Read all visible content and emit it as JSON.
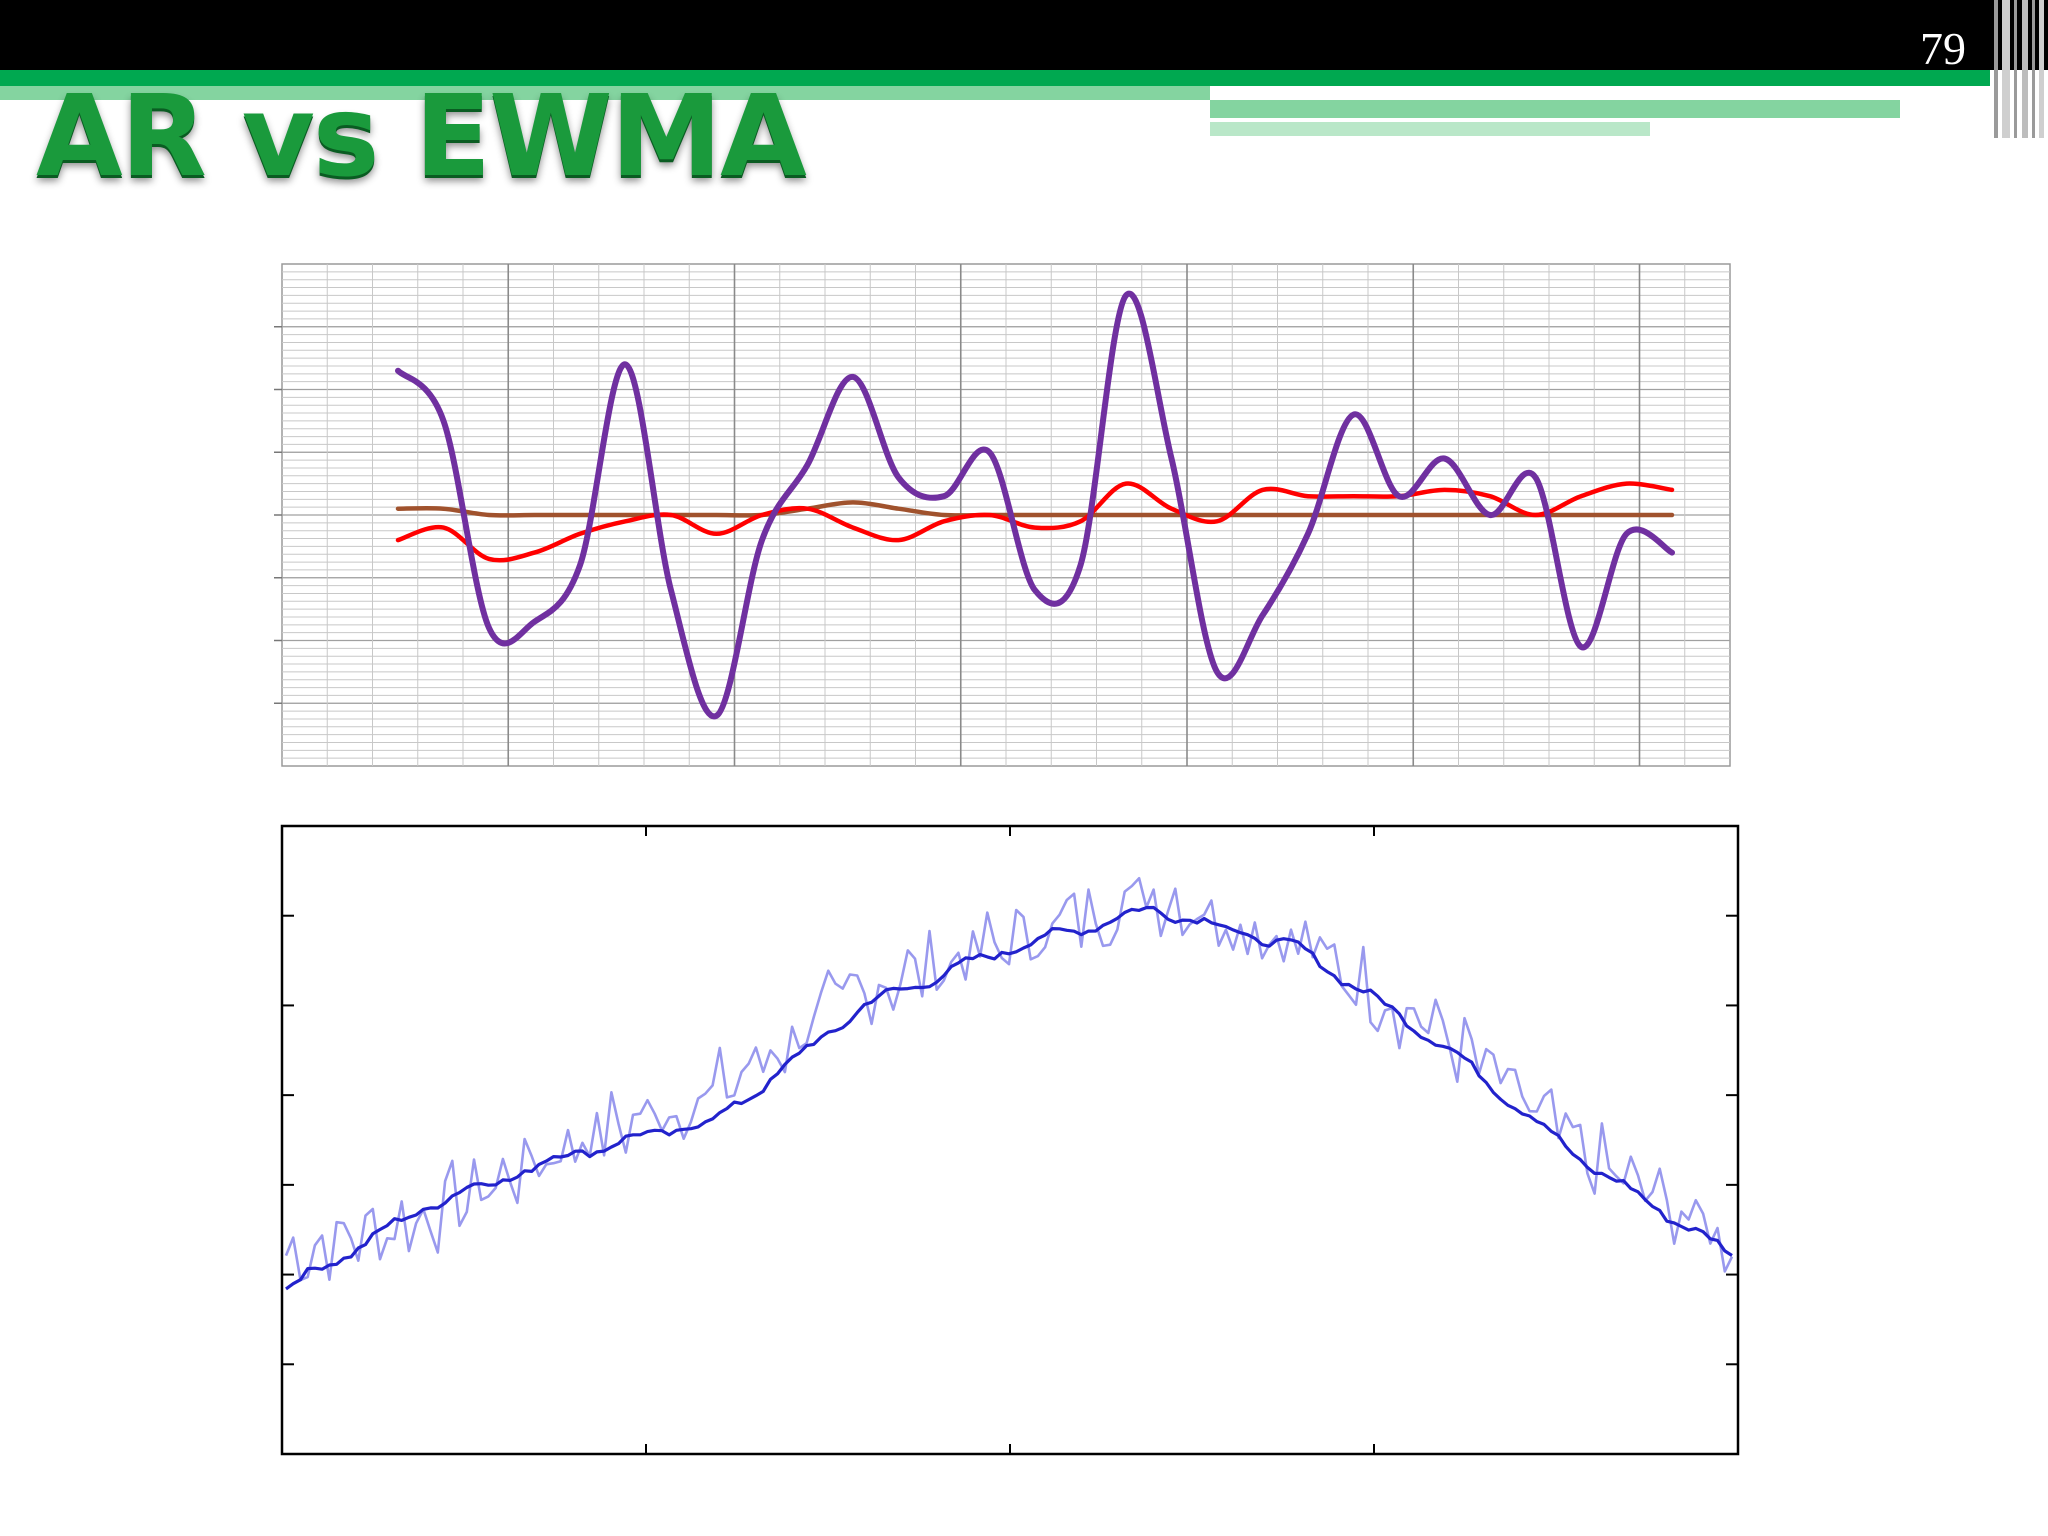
{
  "slide": {
    "number": "79",
    "title": "AR vs EWMA"
  },
  "colors": {
    "top_bar": "#000000",
    "accent_green": "#00a850",
    "light_green": "#84d4a0",
    "title_green": "#1a9a3c"
  },
  "chart_data": [
    {
      "type": "line",
      "title": "",
      "xlabel": "",
      "ylabel": "",
      "grid": true,
      "x": [
        0,
        2,
        4,
        6,
        8,
        10,
        12,
        14,
        16,
        18,
        20,
        22,
        24,
        26,
        28,
        30,
        32,
        34,
        36,
        38,
        40,
        42,
        44,
        46,
        48,
        50,
        52,
        54,
        56
      ],
      "ylim": [
        -4,
        4
      ],
      "series": [
        {
          "color": "#7030a0",
          "values": [
            2.3,
            1.5,
            -1.8,
            -1.7,
            -0.8,
            2.4,
            -1.2,
            -3.2,
            -0.4,
            0.8,
            2.2,
            0.6,
            0.3,
            1.0,
            -1.2,
            -0.8,
            3.5,
            0.9,
            -2.5,
            -1.6,
            -0.3,
            1.6,
            0.3,
            0.9,
            0.0,
            0.6,
            -2.1,
            -0.3,
            -0.6
          ]
        },
        {
          "color": "#ff0000",
          "values": [
            -0.4,
            -0.2,
            -0.7,
            -0.6,
            -0.3,
            -0.1,
            0.0,
            -0.3,
            0.0,
            0.1,
            -0.2,
            -0.4,
            -0.1,
            0.0,
            -0.2,
            -0.1,
            0.5,
            0.1,
            -0.1,
            0.4,
            0.3,
            0.3,
            0.3,
            0.4,
            0.3,
            0.0,
            0.3,
            0.5,
            0.4
          ]
        },
        {
          "color": "#a0522d",
          "values": [
            0.1,
            0.1,
            0.0,
            0.0,
            0.0,
            0.0,
            0.0,
            0.0,
            0.0,
            0.1,
            0.2,
            0.1,
            0.0,
            0.0,
            0.0,
            0.0,
            0.0,
            0.0,
            0.0,
            0.0,
            0.0,
            0.0,
            0.0,
            0.0,
            0.0,
            0.0,
            0.0,
            0.0,
            0.0
          ]
        }
      ]
    },
    {
      "type": "line",
      "title": "",
      "xlabel": "",
      "ylabel": "",
      "grid": false,
      "x": [
        0,
        20,
        40,
        60,
        80,
        100,
        120,
        140,
        160,
        180,
        200
      ],
      "ylim": [
        0,
        1
      ],
      "series": [
        {
          "color": "#9999ee",
          "values": [
            0.28,
            0.35,
            0.48,
            0.57,
            0.75,
            0.83,
            0.92,
            0.83,
            0.67,
            0.45,
            0.3
          ]
        },
        {
          "color": "#2222cc",
          "values": [
            0.22,
            0.37,
            0.46,
            0.52,
            0.72,
            0.82,
            0.89,
            0.82,
            0.65,
            0.44,
            0.28
          ]
        }
      ]
    }
  ]
}
